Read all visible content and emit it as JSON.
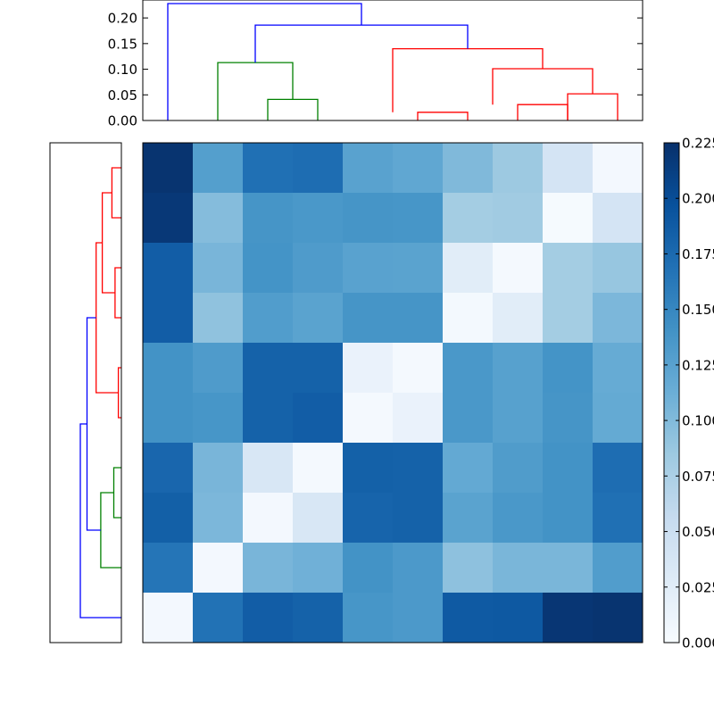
{
  "chart_data": [
    {
      "type": "dendrogram",
      "orientation": "top",
      "yticks": [
        "0.00",
        "0.05",
        "0.10",
        "0.15",
        "0.20"
      ],
      "ylim": [
        0,
        0.235
      ],
      "xlim": [
        0,
        100
      ],
      "links": [
        {
          "x": [
            55,
            55,
            65,
            65
          ],
          "y": [
            0,
            0.016,
            0.016,
            0
          ],
          "color": "#ff0000"
        },
        {
          "x": [
            75,
            75,
            85,
            85
          ],
          "y": [
            0,
            0.031,
            0.031,
            0
          ],
          "color": "#ff0000"
        },
        {
          "x": [
            95,
            95,
            85,
            85
          ],
          "y": [
            0,
            0.052,
            0.052,
            0
          ],
          "color": "#ff0000"
        },
        {
          "x": [
            35,
            35,
            25,
            25
          ],
          "y": [
            0,
            0.041,
            0.041,
            0
          ],
          "color": "#008000"
        },
        {
          "x": [
            15,
            15,
            30,
            30
          ],
          "y": [
            0,
            0.113,
            0.113,
            0.041
          ],
          "color": "#008000"
        },
        {
          "x": [
            70,
            70,
            90,
            90
          ],
          "y": [
            0.031,
            0.101,
            0.101,
            0.052
          ],
          "color": "#ff0000"
        },
        {
          "x": [
            50,
            50,
            80,
            80
          ],
          "y": [
            0.016,
            0.14,
            0.14,
            0.101
          ],
          "color": "#ff0000"
        },
        {
          "x": [
            22.5,
            22.5,
            65,
            65
          ],
          "y": [
            0.113,
            0.186,
            0.186,
            0.14
          ],
          "color": "#0000ff"
        },
        {
          "x": [
            5,
            5,
            43.75,
            43.75
          ],
          "y": [
            0,
            0.228,
            0.228,
            0.186
          ],
          "color": "#0000ff"
        }
      ]
    },
    {
      "type": "dendrogram",
      "orientation": "left",
      "xlim": [
        0,
        0.235
      ],
      "ylim": [
        0,
        100
      ],
      "links": [
        {
          "y": [
            95,
            95,
            85,
            85
          ],
          "x": [
            0,
            0.031,
            0.031,
            0
          ],
          "color": "#ff0000"
        },
        {
          "y": [
            75,
            75,
            65,
            65
          ],
          "x": [
            0,
            0.021,
            0.021,
            0
          ],
          "color": "#ff0000"
        },
        {
          "y": [
            90,
            90,
            70,
            70
          ],
          "x": [
            0.031,
            0.063,
            0.063,
            0.021
          ],
          "color": "#ff0000"
        },
        {
          "y": [
            55,
            55,
            45,
            45
          ],
          "x": [
            0,
            0.01,
            0.01,
            0
          ],
          "color": "#ff0000"
        },
        {
          "y": [
            80,
            80,
            50,
            50
          ],
          "x": [
            0.063,
            0.083,
            0.083,
            0.01
          ],
          "color": "#ff0000"
        },
        {
          "y": [
            35,
            35,
            25,
            25
          ],
          "x": [
            0,
            0.025,
            0.025,
            0
          ],
          "color": "#008000"
        },
        {
          "y": [
            30,
            30,
            15,
            15
          ],
          "x": [
            0.025,
            0.068,
            0.068,
            0
          ],
          "color": "#008000"
        },
        {
          "y": [
            65,
            65,
            22.5,
            22.5
          ],
          "x": [
            0.083,
            0.113,
            0.113,
            0.068
          ],
          "color": "#0000ff"
        },
        {
          "y": [
            43.75,
            43.75,
            5,
            5
          ],
          "x": [
            0.113,
            0.135,
            0.135,
            0
          ],
          "color": "#0000ff"
        }
      ]
    },
    {
      "type": "heatmap",
      "colormap": "Blues",
      "vmin": 0,
      "vmax": 0.225,
      "colorbar_ticks": [
        "0.000",
        "0.025",
        "0.050",
        "0.075",
        "0.100",
        "0.125",
        "0.150",
        "0.175",
        "0.200",
        "0.225"
      ],
      "values": [
        [
          0.222,
          0.128,
          0.17,
          0.172,
          0.125,
          0.12,
          0.101,
          0.085,
          0.04,
          0.005
        ],
        [
          0.218,
          0.098,
          0.138,
          0.135,
          0.138,
          0.137,
          0.08,
          0.082,
          0.002,
          0.04
        ],
        [
          0.186,
          0.105,
          0.139,
          0.132,
          0.125,
          0.124,
          0.025,
          0.003,
          0.08,
          0.088
        ],
        [
          0.186,
          0.092,
          0.13,
          0.124,
          0.138,
          0.138,
          0.004,
          0.025,
          0.08,
          0.103
        ],
        [
          0.14,
          0.132,
          0.182,
          0.182,
          0.015,
          0.003,
          0.135,
          0.126,
          0.139,
          0.116
        ],
        [
          0.14,
          0.137,
          0.182,
          0.186,
          0.003,
          0.015,
          0.135,
          0.126,
          0.138,
          0.117
        ],
        [
          0.178,
          0.105,
          0.035,
          0.003,
          0.183,
          0.182,
          0.118,
          0.131,
          0.14,
          0.172
        ],
        [
          0.184,
          0.103,
          0.005,
          0.035,
          0.18,
          0.182,
          0.124,
          0.135,
          0.14,
          0.17
        ],
        [
          0.165,
          0.005,
          0.105,
          0.11,
          0.14,
          0.134,
          0.093,
          0.104,
          0.104,
          0.13
        ],
        [
          0.005,
          0.168,
          0.186,
          0.182,
          0.137,
          0.134,
          0.189,
          0.19,
          0.22,
          0.222
        ]
      ]
    }
  ]
}
